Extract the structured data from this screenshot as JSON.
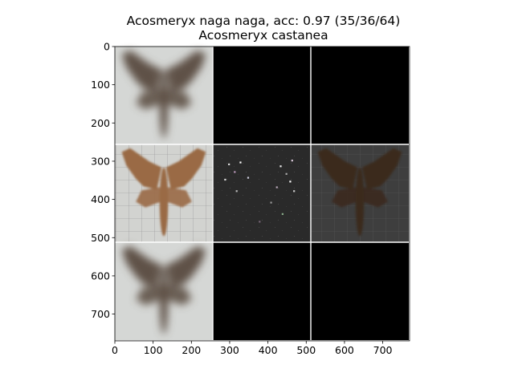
{
  "chart_data": {
    "type": "image_grid",
    "title_line1": "Acosmeryx naga naga, acc: 0.97 (35/36/64)",
    "title_line2": "Acosmeryx castanea",
    "xlabel": "",
    "ylabel": "",
    "xlim": [
      0,
      770
    ],
    "ylim": [
      770,
      0
    ],
    "grid": false,
    "cell_size": 256,
    "x_ticks": [
      0,
      100,
      200,
      300,
      400,
      500,
      600,
      700
    ],
    "y_ticks": [
      0,
      100,
      200,
      300,
      400,
      500,
      600,
      700
    ],
    "tiles": [
      {
        "row": 0,
        "col": 0,
        "content": "moth-blurry"
      },
      {
        "row": 0,
        "col": 1,
        "content": "black"
      },
      {
        "row": 0,
        "col": 2,
        "content": "black"
      },
      {
        "row": 1,
        "col": 0,
        "content": "moth-photo"
      },
      {
        "row": 1,
        "col": 1,
        "content": "noise-map"
      },
      {
        "row": 1,
        "col": 2,
        "content": "moth-dark"
      },
      {
        "row": 2,
        "col": 0,
        "content": "moth-blurry"
      },
      {
        "row": 2,
        "col": 1,
        "content": "black"
      },
      {
        "row": 2,
        "col": 2,
        "content": "black"
      }
    ],
    "colors": {
      "separator": "#ffffff",
      "blurry_bg": "#d5d7d5",
      "blurry_moth": "#5e5146",
      "photo_bg": "#d2d3d0",
      "photo_moth": "#9a6a45",
      "noise_bg": "#2b2b2b",
      "dark_bg": "#3e3e3e",
      "dark_moth": "#3a2a1e"
    }
  }
}
